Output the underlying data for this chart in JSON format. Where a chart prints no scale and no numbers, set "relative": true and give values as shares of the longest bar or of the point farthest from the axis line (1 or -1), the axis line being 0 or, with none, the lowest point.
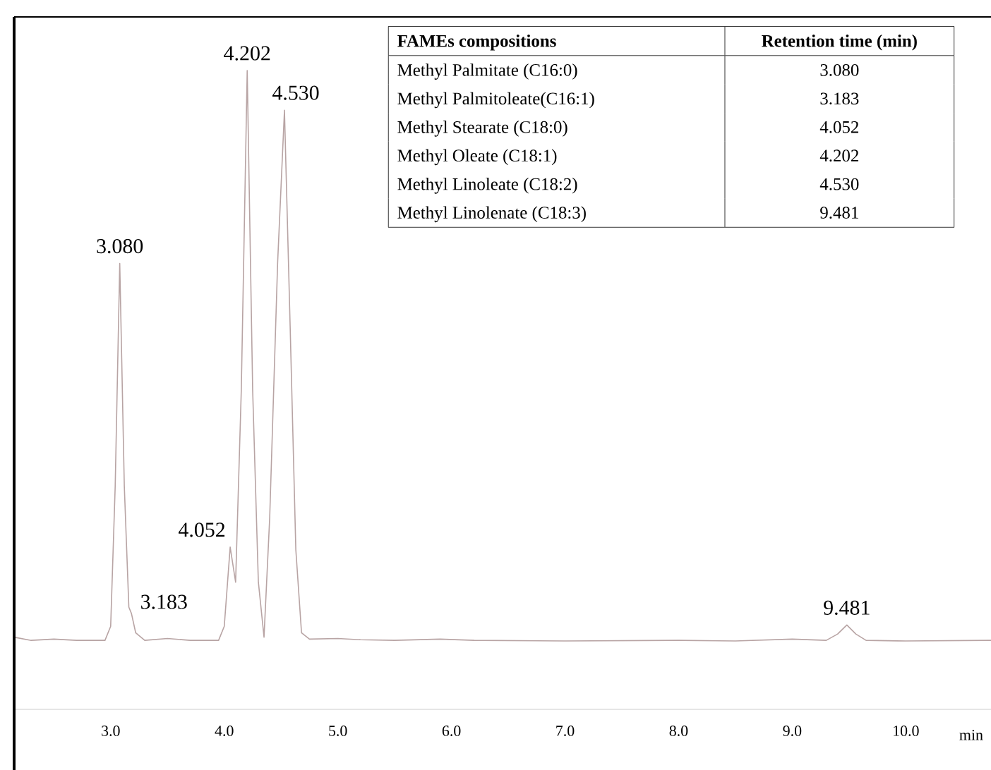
{
  "chart_data": {
    "type": "line",
    "relative": true,
    "xlabel": "min",
    "xlim": [
      2.15,
      10.75
    ],
    "xticks": [
      {
        "value": 3,
        "label": "3.0"
      },
      {
        "value": 4,
        "label": "4.0"
      },
      {
        "value": 5,
        "label": "5.0"
      },
      {
        "value": 6,
        "label": "6.0"
      },
      {
        "value": 7,
        "label": "7.0"
      },
      {
        "value": 8,
        "label": "8.0"
      },
      {
        "value": 9,
        "label": "9.0"
      },
      {
        "value": 10,
        "label": "10.0"
      }
    ],
    "series": [
      {
        "color": "#b8a4a4",
        "x": [
          2.15,
          2.3,
          2.5,
          2.7,
          2.95,
          3.0,
          3.04,
          3.08,
          3.12,
          3.16,
          3.183,
          3.22,
          3.3,
          3.5,
          3.7,
          3.95,
          4.0,
          4.052,
          4.1,
          4.15,
          4.202,
          4.25,
          4.3,
          4.35,
          4.4,
          4.47,
          4.53,
          4.58,
          4.63,
          4.68,
          4.75,
          5.0,
          5.2,
          5.5,
          5.9,
          6.2,
          7.0,
          8.0,
          8.5,
          9.0,
          9.3,
          9.4,
          9.481,
          9.56,
          9.65,
          10.0,
          10.75
        ],
        "values": [
          0.113,
          0.108,
          0.11,
          0.108,
          0.108,
          0.13,
          0.35,
          0.698,
          0.35,
          0.16,
          0.15,
          0.12,
          0.108,
          0.111,
          0.108,
          0.108,
          0.13,
          0.254,
          0.199,
          0.5,
          1.0,
          0.5,
          0.2,
          0.113,
          0.3,
          0.7,
          0.938,
          0.6,
          0.25,
          0.12,
          0.11,
          0.111,
          0.109,
          0.108,
          0.11,
          0.108,
          0.107,
          0.108,
          0.107,
          0.11,
          0.108,
          0.118,
          0.132,
          0.118,
          0.108,
          0.107,
          0.108
        ]
      }
    ],
    "annotations": [
      {
        "text": "3.080",
        "x": 3.08,
        "y": 0.698
      },
      {
        "text": "3.183",
        "x": 3.183,
        "y": 0.15
      },
      {
        "text": "4.052",
        "x": 4.052,
        "y": 0.254
      },
      {
        "text": "4.202",
        "x": 4.202,
        "y": 1.0
      },
      {
        "text": "4.530",
        "x": 4.53,
        "y": 0.938
      },
      {
        "text": "9.481",
        "x": 9.481,
        "y": 0.132
      },
      "FAMEs compositions",
      "Retention time (min)",
      "Methyl Palmitate (C16:0)",
      "3.080",
      "Methyl Palmitoleate(C16:1)",
      "3.183",
      "Methyl Stearate (C18:0)",
      "4.052",
      "Methyl Oleate (C18:1)",
      "4.202",
      "Methyl Linoleate (C18:2)",
      "4.530",
      "Methyl Linolenate (C18:3)",
      "9.481"
    ]
  }
}
